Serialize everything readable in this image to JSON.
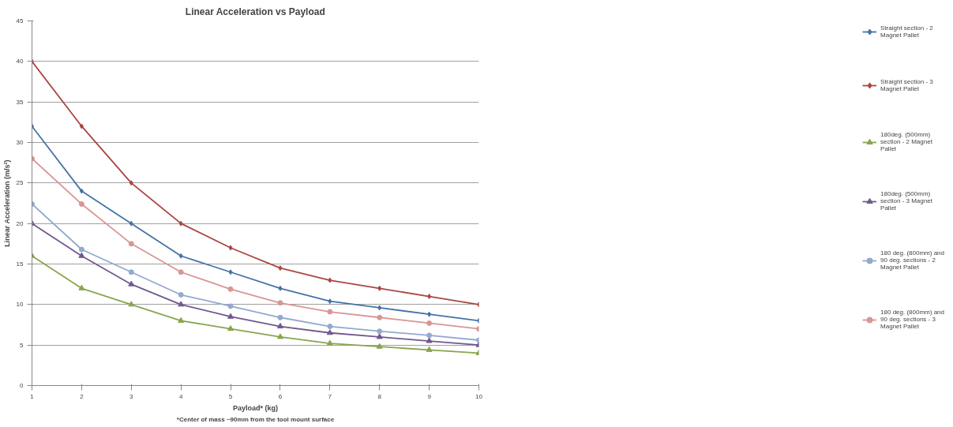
{
  "chart_data": {
    "type": "line",
    "title": "Linear Acceleration vs Payload",
    "xlabel": "Payload* (kg)",
    "ylabel": "Linear Acceleration (m/s²)",
    "annotations": [
      "*Center of mass ~90mm from the tool mount surface"
    ],
    "x": [
      1,
      2,
      3,
      4,
      5,
      6,
      7,
      8,
      9,
      10
    ],
    "xlim": [
      1,
      10
    ],
    "xticks": [
      1,
      2,
      3,
      4,
      5,
      6,
      7,
      8,
      9,
      10
    ],
    "ylim": [
      0,
      45
    ],
    "yticks": [
      0,
      5,
      10,
      15,
      20,
      25,
      30,
      35,
      40,
      45
    ],
    "grid": "y",
    "legend": "right",
    "line_style": "solid",
    "series": [
      {
        "name": "Straight section - 2 Magnet Pallet",
        "color": "#4572a7",
        "marker": "diamond",
        "values": [
          32,
          24,
          20,
          16,
          14,
          12,
          10.4,
          9.6,
          8.8,
          8
        ]
      },
      {
        "name": "Straight section - 3 Magnet Pallet",
        "color": "#aa4643",
        "marker": "diamond",
        "values": [
          40,
          32,
          25,
          20,
          17,
          14.5,
          13,
          12,
          11,
          10
        ]
      },
      {
        "name": "180deg. (500mm) section - 2 Magnet Pallet",
        "color": "#89a54e",
        "marker": "triangle",
        "values": [
          16,
          12,
          10,
          8,
          7,
          6,
          5.2,
          4.8,
          4.4,
          4
        ]
      },
      {
        "name": "180deg. (500mm) section - 3 Magnet Pallet",
        "color": "#71588f",
        "marker": "triangle",
        "values": [
          20,
          16,
          12.5,
          10,
          8.5,
          7.3,
          6.5,
          6,
          5.5,
          5
        ]
      },
      {
        "name": "180 deg. (800mm) and 90 deg. sections - 2 Magnet Pallet",
        "color": "#93a9cf",
        "marker": "circle",
        "values": [
          22.4,
          16.8,
          14,
          11.2,
          9.8,
          8.4,
          7.3,
          6.7,
          6.2,
          5.6
        ]
      },
      {
        "name": "180 deg. (800mm) and 90 deg. sections - 3 Magnet Pallet",
        "color": "#d99694",
        "marker": "circle",
        "values": [
          28,
          22.4,
          17.5,
          14,
          11.9,
          10.2,
          9.1,
          8.4,
          7.7,
          7
        ]
      }
    ]
  }
}
